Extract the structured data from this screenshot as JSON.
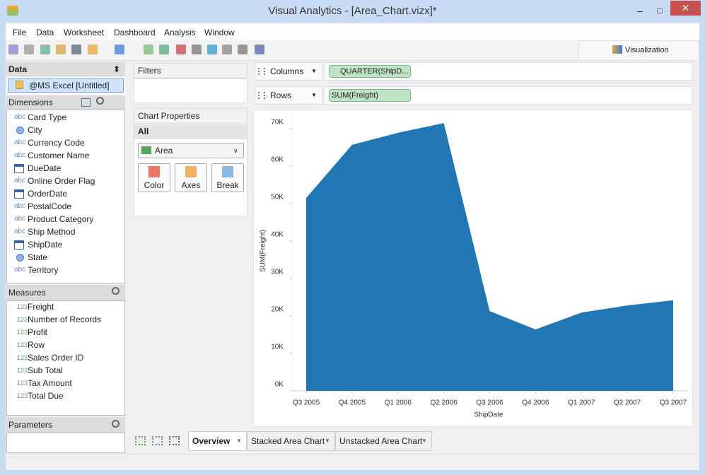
{
  "window": {
    "title": "Visual Analytics - [Area_Chart.vizx]*"
  },
  "menu": [
    "File",
    "Data",
    "Worksheet",
    "Dashboard",
    "Analysis",
    "Window"
  ],
  "visualization_tab": "Visualization",
  "data_panel": {
    "title": "Data",
    "source": "@MS Excel [Untitled]",
    "dimensions_title": "Dimensions",
    "dimensions": [
      {
        "icon": "abc",
        "name": "Card Type"
      },
      {
        "icon": "geo",
        "name": "City"
      },
      {
        "icon": "abc",
        "name": "Currency Code"
      },
      {
        "icon": "abc",
        "name": "Customer Name"
      },
      {
        "icon": "date",
        "name": "DueDate"
      },
      {
        "icon": "abc",
        "name": "Online Order Flag"
      },
      {
        "icon": "date",
        "name": "OrderDate"
      },
      {
        "icon": "abc",
        "name": "PostalCode"
      },
      {
        "icon": "abc",
        "name": "Product Category"
      },
      {
        "icon": "abc",
        "name": "Ship Method"
      },
      {
        "icon": "date",
        "name": "ShipDate"
      },
      {
        "icon": "geo",
        "name": "State"
      },
      {
        "icon": "abc",
        "name": "Territory"
      }
    ],
    "measures_title": "Measures",
    "measures": [
      {
        "prefix": "123",
        "name": "Freight"
      },
      {
        "prefix": "123",
        "name": "Number of Records"
      },
      {
        "prefix": "123",
        "name": "Profit"
      },
      {
        "prefix": "123",
        "name": "Row"
      },
      {
        "prefix": "123",
        "name": "Sales Order ID"
      },
      {
        "prefix": "123",
        "name": "Sub Total"
      },
      {
        "prefix": "123",
        "name": "Tax Amount"
      },
      {
        "prefix": "123",
        "name": "Total Due"
      }
    ],
    "parameters_title": "Parameters"
  },
  "filters_title": "Filters",
  "chart_properties": {
    "title": "Chart Properties",
    "all": "All",
    "chart_type": "Area",
    "buttons": [
      "Color",
      "Axes",
      "Break"
    ]
  },
  "shelves": {
    "columns_label": "Columns",
    "columns_pill": "QUARTER(ShipD...",
    "rows_label": "Rows",
    "rows_pill": "SUM(Freight)"
  },
  "sheet_tabs": [
    "Overview",
    "Stacked Area Chart",
    "Unstacked Area Chart"
  ],
  "chart_data": {
    "type": "area",
    "x_label": "ShipDate",
    "y_label": "SUM(Freight)",
    "categories": [
      "Q3 2005",
      "Q4 2005",
      "Q1 2006",
      "Q2 2006",
      "Q3 2006",
      "Q4 2006",
      "Q1 2007",
      "Q2 2007",
      "Q3 2007"
    ],
    "values": [
      51500,
      65700,
      68900,
      71500,
      21300,
      16400,
      20900,
      22800,
      24200
    ],
    "color": "#2176b4",
    "ylim": [
      0,
      73600
    ],
    "yticks": [
      {
        "value": 0,
        "label": "0K"
      },
      {
        "value": 10000,
        "label": "10K"
      },
      {
        "value": 20000,
        "label": "20K"
      },
      {
        "value": 30000,
        "label": "30K"
      },
      {
        "value": 40000,
        "label": "40K"
      },
      {
        "value": 50000,
        "label": "50K"
      },
      {
        "value": 60000,
        "label": "60K"
      },
      {
        "value": 70000,
        "label": "70K"
      }
    ]
  }
}
